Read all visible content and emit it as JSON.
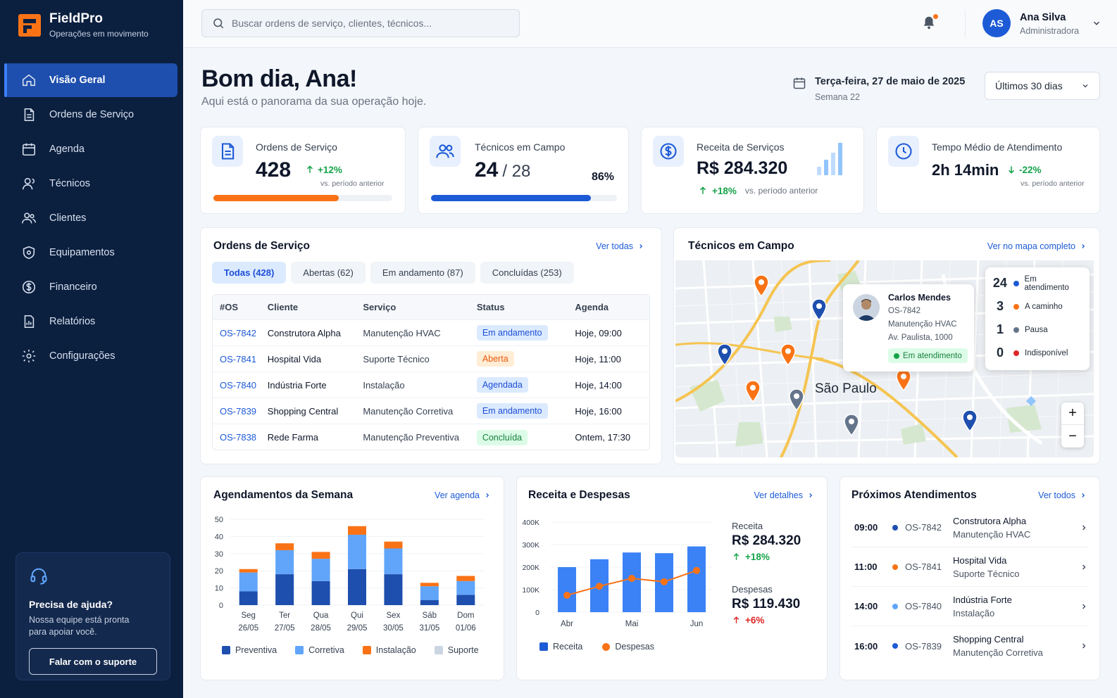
{
  "brand": {
    "name": "FieldPro",
    "tagline": "Operações em movimento"
  },
  "nav": [
    {
      "label": "Visão Geral",
      "icon": "home-icon",
      "active": true
    },
    {
      "label": "Ordens de Serviço",
      "icon": "document-icon"
    },
    {
      "label": "Agenda",
      "icon": "calendar-icon"
    },
    {
      "label": "Técnicos",
      "icon": "user-icon"
    },
    {
      "label": "Clientes",
      "icon": "users-icon"
    },
    {
      "label": "Equipamentos",
      "icon": "shield-icon"
    },
    {
      "label": "Financeiro",
      "icon": "dollar-icon"
    },
    {
      "label": "Relatórios",
      "icon": "report-icon"
    },
    {
      "label": "Configurações",
      "icon": "gear-icon"
    }
  ],
  "help": {
    "title": "Precisa de ajuda?",
    "text": "Nossa equipe está pronta para apoiar você.",
    "button": "Falar com o suporte"
  },
  "search": {
    "placeholder": "Buscar ordens de serviço, clientes, técnicos..."
  },
  "user": {
    "initials": "AS",
    "name": "Ana Silva",
    "role": "Administradora"
  },
  "header": {
    "greeting": "Bom dia, Ana!",
    "subtitle": "Aqui está o panorama da sua operação hoje.",
    "date": "Terça-feira, 27 de maio de 2025",
    "week": "Semana 22",
    "period": "Últimos 30 dias"
  },
  "kpis": {
    "orders": {
      "label": "Ordens de Serviço",
      "value": "428",
      "change": "+12%",
      "note": "vs. período anterior",
      "progress": 0.7
    },
    "techs": {
      "label": "Técnicos em Campo",
      "value": "24",
      "total": "/ 28",
      "pct": "86%",
      "progress": 0.86
    },
    "revenue": {
      "label": "Receita de Serviços",
      "value": "R$ 284.320",
      "change": "+18%",
      "note": "vs. período anterior"
    },
    "time": {
      "label": "Tempo Médio de Atendimento",
      "value": "2h 14min",
      "change": "-22%",
      "note": "vs. período anterior"
    }
  },
  "orders": {
    "title": "Ordens de Serviço",
    "link": "Ver todas",
    "tabs": [
      "Todas (428)",
      "Abertas (62)",
      "Em andamento (87)",
      "Concluídas (253)"
    ],
    "headers": [
      "#OS",
      "Cliente",
      "Serviço",
      "Status",
      "Agenda"
    ],
    "rows": [
      {
        "os": "OS-7842",
        "client": "Construtora Alpha",
        "service": "Manutenção HVAC",
        "status": "Em andamento",
        "schedule": "Hoje, 09:00",
        "cls": "b-and"
      },
      {
        "os": "OS-7841",
        "client": "Hospital Vida",
        "service": "Suporte Técnico",
        "status": "Aberta",
        "schedule": "Hoje, 11:00",
        "cls": "b-abe"
      },
      {
        "os": "OS-7840",
        "client": "Indústria Forte",
        "service": "Instalação",
        "status": "Agendada",
        "schedule": "Hoje, 14:00",
        "cls": "b-age"
      },
      {
        "os": "OS-7839",
        "client": "Shopping Central",
        "service": "Manutenção Corretiva",
        "status": "Em andamento",
        "schedule": "Hoje, 16:00",
        "cls": "b-and"
      },
      {
        "os": "OS-7838",
        "client": "Rede Farma",
        "service": "Manutenção Preventiva",
        "status": "Concluída",
        "schedule": "Ontem, 17:30",
        "cls": "b-con"
      }
    ]
  },
  "map": {
    "title": "Técnicos em Campo",
    "link": "Ver no mapa completo",
    "city": "São Paulo",
    "popup": {
      "name": "Carlos Mendes",
      "os": "OS-7842",
      "service": "Manutenção HVAC",
      "address": "Av. Paulista, 1000",
      "status": "Em atendimento"
    },
    "legend": [
      {
        "count": "24",
        "label": "Em atendimento",
        "color": "#1d5bd6"
      },
      {
        "count": "3",
        "label": "A caminho",
        "color": "#f97316"
      },
      {
        "count": "1",
        "label": "Pausa",
        "color": "#64748b"
      },
      {
        "count": "0",
        "label": "Indisponível",
        "color": "#dc2626"
      }
    ]
  },
  "schedule_chart": {
    "title": "Agendamentos da Semana",
    "link": "Ver agenda",
    "days": [
      "Seg",
      "Ter",
      "Qua",
      "Qui",
      "Sex",
      "Sáb",
      "Dom"
    ],
    "dates": [
      "26/05",
      "27/05",
      "28/05",
      "29/05",
      "30/05",
      "31/05",
      "01/06"
    ],
    "y_ticks": [
      "50",
      "40",
      "30",
      "20",
      "10",
      "0"
    ],
    "legend": [
      "Preventiva",
      "Corretiva",
      "Instalação",
      "Suporte"
    ]
  },
  "finance_chart": {
    "title": "Receita e Despesas",
    "link": "Ver detalhes",
    "x": [
      "Abr",
      "Mai",
      "Jun"
    ],
    "y_ticks": [
      "400K",
      "300K",
      "200K",
      "100K",
      "0"
    ],
    "revenue_label": "Receita",
    "revenue_value": "R$ 284.320",
    "revenue_change": "+18%",
    "expense_label": "Despesas",
    "expense_value": "R$ 119.430",
    "expense_change": "+6%",
    "legend": [
      "Receita",
      "Despesas"
    ]
  },
  "chart_data": [
    {
      "type": "bar",
      "title": "Agendamentos da Semana",
      "categories": [
        "Seg",
        "Ter",
        "Qua",
        "Qui",
        "Sex",
        "Sáb",
        "Dom"
      ],
      "ylim": [
        0,
        50
      ],
      "stacked": true,
      "series": [
        {
          "name": "Preventiva",
          "color": "#1e4fae",
          "values": [
            8,
            18,
            14,
            21,
            18,
            3,
            6
          ]
        },
        {
          "name": "Corretiva",
          "color": "#60a5fa",
          "values": [
            11,
            14,
            13,
            20,
            15,
            8,
            8
          ]
        },
        {
          "name": "Instalação",
          "color": "#f97316",
          "values": [
            2,
            4,
            4,
            5,
            4,
            2,
            3
          ]
        },
        {
          "name": "Suporte",
          "color": "#cbd5e1",
          "values": [
            0,
            0,
            0,
            0,
            0,
            0,
            0
          ]
        }
      ]
    },
    {
      "type": "bar",
      "title": "Receita e Despesas",
      "x": [
        "Abr",
        "",
        "Mai",
        "",
        "Jun"
      ],
      "ylim": [
        0,
        400000
      ],
      "series": [
        {
          "name": "Receita",
          "color": "#3b82f6",
          "values": [
            200000,
            235000,
            265000,
            262000,
            292000
          ]
        },
        {
          "name": "Despesas",
          "color": "#f97316",
          "type": "line",
          "values": [
            75000,
            115000,
            150000,
            135000,
            185000
          ]
        }
      ]
    }
  ],
  "upcoming": {
    "title": "Próximos Atendimentos",
    "link": "Ver todos",
    "items": [
      {
        "time": "09:00",
        "os": "OS-7842",
        "client": "Construtora Alpha",
        "service": "Manutenção HVAC",
        "color": "#1e4fae"
      },
      {
        "time": "11:00",
        "os": "OS-7841",
        "client": "Hospital Vida",
        "service": "Suporte Técnico",
        "color": "#f97316"
      },
      {
        "time": "14:00",
        "os": "OS-7840",
        "client": "Indústria Forte",
        "service": "Instalação",
        "color": "#60a5fa"
      },
      {
        "time": "16:00",
        "os": "OS-7839",
        "client": "Shopping Central",
        "service": "Manutenção Corretiva",
        "color": "#1d5bd6"
      }
    ]
  }
}
